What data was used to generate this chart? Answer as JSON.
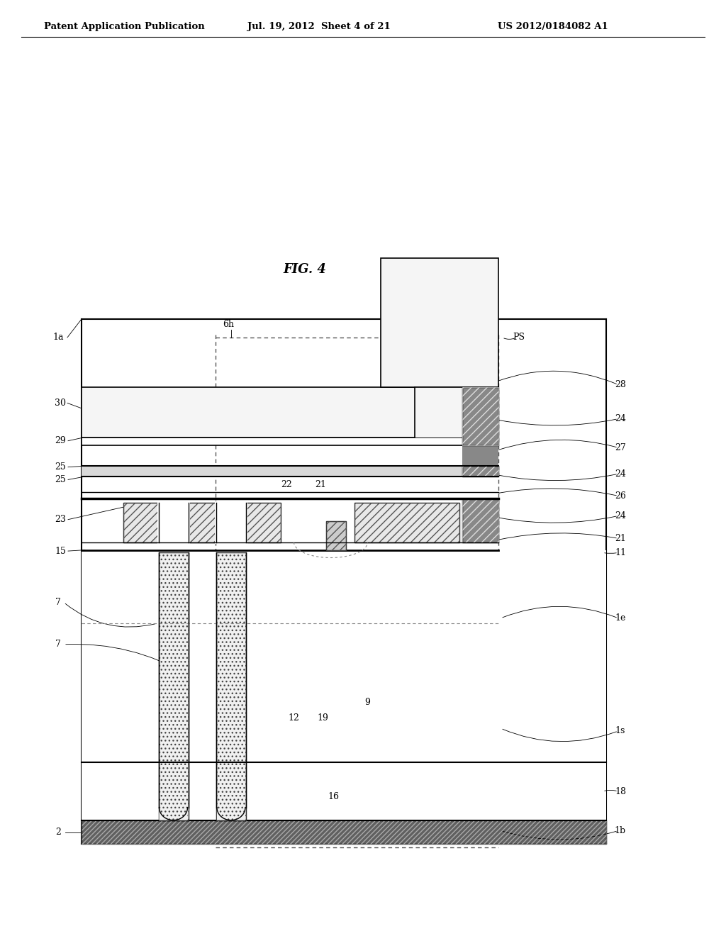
{
  "title": "FIG. 4",
  "header_left": "Patent Application Publication",
  "header_mid": "Jul. 19, 2012  Sheet 4 of 21",
  "header_right": "US 2012/0184082 A1",
  "bg_color": "#ffffff"
}
